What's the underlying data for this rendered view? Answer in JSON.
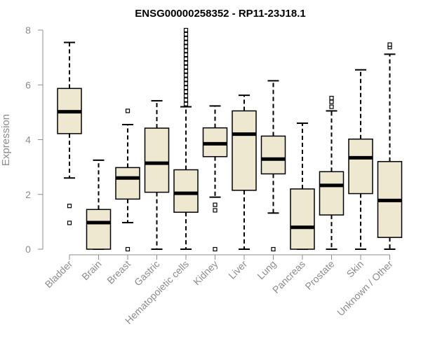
{
  "chart_data": {
    "type": "boxplot",
    "title": "ENSG00000258352 - RP11-23J18.1",
    "ylabel": "Expression",
    "ylim": [
      0,
      8
    ],
    "yticks": [
      0,
      2,
      4,
      6,
      8
    ],
    "colors": {
      "box_fill": "#efe8d0",
      "stroke": "#000000",
      "axis": "#8c8c8c"
    },
    "categories": [
      "Bladder",
      "Brain",
      "Breast",
      "Gastric",
      "Hematopoietic cells",
      "Kidney",
      "Liver",
      "Lung",
      "Pancreas",
      "Prostate",
      "Skin",
      "Unknown / Other"
    ],
    "boxes": [
      {
        "label": "Bladder",
        "low": 2.6,
        "q1": 4.22,
        "median": 5.02,
        "q3": 5.87,
        "high": 7.55,
        "outliers": [
          1.58,
          0.96
        ]
      },
      {
        "label": "Brain",
        "low": 0.0,
        "q1": 0.0,
        "median": 0.97,
        "q3": 1.45,
        "high": 3.25,
        "outliers": []
      },
      {
        "label": "Breast",
        "low": 0.97,
        "q1": 1.83,
        "median": 2.6,
        "q3": 2.98,
        "high": 4.55,
        "outliers": [
          5.05,
          0.0
        ]
      },
      {
        "label": "Gastric",
        "low": 0.0,
        "q1": 2.08,
        "median": 3.14,
        "q3": 4.42,
        "high": 5.42,
        "outliers": []
      },
      {
        "label": "Hematopoietic cells",
        "low": 0.0,
        "q1": 1.35,
        "median": 2.04,
        "q3": 2.9,
        "high": 5.2,
        "outliers": [
          5.3,
          5.45,
          5.6,
          5.75,
          5.9,
          6.05,
          6.2,
          6.35,
          6.5,
          6.65,
          6.8,
          6.95,
          7.1,
          7.25,
          7.4,
          7.55,
          7.7,
          7.85,
          8.0
        ]
      },
      {
        "label": "Kidney",
        "low": 1.9,
        "q1": 3.38,
        "median": 3.85,
        "q3": 4.43,
        "high": 5.23,
        "outliers": [
          1.62,
          1.42,
          0.0
        ]
      },
      {
        "label": "Liver",
        "low": 0.0,
        "q1": 2.15,
        "median": 4.2,
        "q3": 5.05,
        "high": 5.62,
        "outliers": []
      },
      {
        "label": "Lung",
        "low": 1.32,
        "q1": 2.75,
        "median": 3.29,
        "q3": 4.13,
        "high": 6.15,
        "outliers": [
          0.0
        ]
      },
      {
        "label": "Pancreas",
        "low": 0.0,
        "q1": 0.0,
        "median": 0.8,
        "q3": 2.2,
        "high": 4.6,
        "outliers": []
      },
      {
        "label": "Prostate",
        "low": 0.0,
        "q1": 1.25,
        "median": 2.33,
        "q3": 2.83,
        "high": 5.05,
        "outliers": [
          5.2,
          5.38,
          5.52
        ]
      },
      {
        "label": "Skin",
        "low": 0.0,
        "q1": 2.03,
        "median": 3.34,
        "q3": 4.02,
        "high": 6.55,
        "outliers": []
      },
      {
        "label": "Unknown / Other",
        "low": 0.0,
        "q1": 0.43,
        "median": 1.78,
        "q3": 3.2,
        "high": 7.12,
        "outliers": [
          7.38,
          7.47
        ]
      }
    ]
  }
}
